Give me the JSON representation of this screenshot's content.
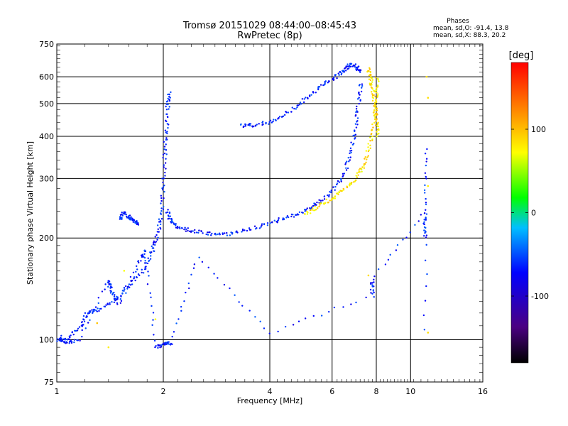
{
  "chart_data": {
    "type": "scatter",
    "title": "Tromsø 20151029 08:44:00–08:45:43",
    "subtitle": "RwPretec (8p)",
    "stats": {
      "heading": "Phases",
      "line1": "mean, sd,O: -91.4, 13.8",
      "line2": "mean, sd,X:  88.3, 20.2"
    },
    "xlabel": "Frequency [MHz]",
    "ylabel": "Stationary phase Virtual Height [km]",
    "x_scale": "log",
    "y_scale": "log",
    "xlim": [
      1,
      16
    ],
    "ylim": [
      75,
      750
    ],
    "x_ticks": [
      1,
      2,
      4,
      6,
      8,
      10,
      16
    ],
    "x_tick_labels": [
      "1",
      "2",
      "4",
      "6",
      "8",
      "10",
      "16"
    ],
    "y_ticks": [
      75,
      100,
      200,
      300,
      400,
      500,
      600,
      750
    ],
    "y_tick_labels": [
      "75",
      "100",
      "200",
      "300",
      "400",
      "500",
      "600",
      "750"
    ],
    "grid": true,
    "colorbar": {
      "label": "[deg]",
      "range": [
        -180,
        180
      ],
      "ticks": [
        100,
        0,
        -100
      ],
      "tick_labels": [
        "100",
        "0",
        "-100"
      ],
      "colors": [
        "#000000",
        "#4b0082",
        "#0000ff",
        "#00bfff",
        "#00ff00",
        "#ffff00",
        "#ff8000",
        "#ff0000"
      ]
    },
    "traces": [
      {
        "name": "",
        "phase": -90,
        "points": [
          [
            1.0,
            100
          ],
          [
            1.07,
            100
          ],
          [
            1.17,
            110
          ],
          [
            1.22,
            120
          ],
          [
            1.3,
            122
          ],
          [
            1.45,
            130
          ],
          [
            1.6,
            145
          ],
          [
            1.75,
            160
          ],
          [
            1.85,
            180
          ],
          [
            1.92,
            200
          ],
          [
            1.97,
            230
          ],
          [
            2.0,
            280
          ],
          [
            2.02,
            350
          ],
          [
            2.04,
            420
          ],
          [
            2.06,
            500
          ],
          [
            2.08,
            540
          ]
        ]
      },
      {
        "name": "",
        "phase": -90,
        "points": [
          [
            2.05,
            240
          ],
          [
            2.1,
            225
          ],
          [
            2.2,
            215
          ],
          [
            2.4,
            210
          ],
          [
            2.7,
            206
          ],
          [
            3.0,
            205
          ],
          [
            3.5,
            212
          ],
          [
            4.0,
            222
          ],
          [
            4.5,
            230
          ],
          [
            5.0,
            240
          ],
          [
            5.5,
            255
          ],
          [
            6.0,
            275
          ],
          [
            6.5,
            310
          ],
          [
            6.8,
            360
          ],
          [
            7.0,
            430
          ],
          [
            7.15,
            510
          ],
          [
            7.25,
            580
          ]
        ]
      },
      {
        "name": "",
        "phase": -90,
        "points": [
          [
            3.3,
            430
          ],
          [
            3.6,
            432
          ],
          [
            4.0,
            440
          ],
          [
            4.5,
            470
          ],
          [
            5.0,
            510
          ],
          [
            5.5,
            555
          ],
          [
            6.0,
            590
          ],
          [
            6.4,
            620
          ],
          [
            6.7,
            650
          ],
          [
            7.0,
            645
          ],
          [
            7.2,
            620
          ]
        ]
      },
      {
        "name": "",
        "phase": -90,
        "points": [
          [
            1.5,
            225
          ],
          [
            1.55,
            238
          ],
          [
            1.6,
            230
          ],
          [
            1.65,
            225
          ],
          [
            1.7,
            218
          ]
        ]
      },
      {
        "name": "",
        "phase": 100,
        "points": [
          [
            5.0,
            235
          ],
          [
            5.5,
            248
          ],
          [
            6.0,
            262
          ],
          [
            6.5,
            278
          ],
          [
            7.0,
            300
          ],
          [
            7.4,
            330
          ],
          [
            7.7,
            380
          ],
          [
            7.9,
            440
          ],
          [
            8.0,
            520
          ],
          [
            8.05,
            600
          ]
        ]
      },
      {
        "name": "",
        "phase": 100,
        "points": [
          [
            7.6,
            630
          ],
          [
            7.7,
            600
          ],
          [
            7.8,
            560
          ],
          [
            7.9,
            500
          ],
          [
            8.0,
            450
          ],
          [
            8.1,
            400
          ]
        ]
      },
      {
        "name": "",
        "phase": -90,
        "points": [
          [
            1.02,
            102
          ],
          [
            1.05,
            98
          ],
          [
            1.15,
            100
          ],
          [
            1.4,
            150
          ],
          [
            1.42,
            140
          ],
          [
            1.5,
            128
          ],
          [
            1.7,
            170
          ],
          [
            1.78,
            185
          ],
          [
            1.9,
            95
          ],
          [
            2.03,
            97
          ],
          [
            2.1,
            98
          ],
          [
            2.5,
            175
          ],
          [
            4.0,
            105
          ],
          [
            7.8,
            135
          ],
          [
            7.8,
            150
          ],
          [
            11.0,
            240
          ],
          [
            11.0,
            200
          ],
          [
            11.1,
            370
          ],
          [
            11.0,
            98
          ]
        ]
      },
      {
        "name": "",
        "phase": 100,
        "points": [
          [
            1.3,
            112
          ],
          [
            1.4,
            95
          ],
          [
            1.55,
            160
          ],
          [
            1.9,
            115
          ],
          [
            11.2,
            285
          ],
          [
            11.2,
            520
          ],
          [
            11.1,
            600
          ],
          [
            11.2,
            105
          ],
          [
            7.6,
            155
          ]
        ]
      }
    ]
  }
}
